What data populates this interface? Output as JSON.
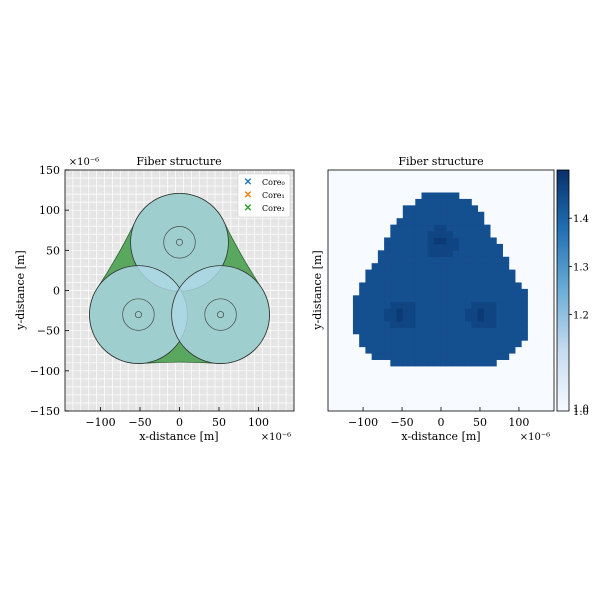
{
  "chart_data": [
    {
      "type": "scatter",
      "title": "Fiber structure",
      "xlabel": "x-distance [m]",
      "ylabel": "y-distance [m]",
      "x_offset_label": "×10⁻⁶",
      "y_offset_label": "×10⁻⁶",
      "xlim": [
        -145,
        145
      ],
      "ylim": [
        -150,
        150
      ],
      "xticks": [
        -100,
        -50,
        0,
        50,
        100
      ],
      "xtick_labels": [
        "−100",
        "−50",
        "0",
        "50",
        "100"
      ],
      "yticks": [
        -150,
        -100,
        -50,
        0,
        50,
        100,
        150
      ],
      "ytick_labels": [
        "−150",
        "−100",
        "−50",
        "0",
        "50",
        "100",
        "150"
      ],
      "grid": true,
      "background": "#e5e5e5",
      "legend_placement": "top-right",
      "legend": [
        {
          "label": "Core₀",
          "color": "#1f77b4",
          "marker": "x"
        },
        {
          "label": "Core₁",
          "color": "#ff7f0e",
          "marker": "x"
        },
        {
          "label": "Core₂",
          "color": "#2ca02c",
          "marker": "x"
        }
      ],
      "clad_color": "#5aa85f",
      "core_color": "#add8e6",
      "cores": [
        {
          "x": 0,
          "y": 60,
          "radius": 62,
          "inner_radius": 20,
          "center_radius": 4
        },
        {
          "x": -52,
          "y": -30,
          "radius": 62,
          "inner_radius": 20,
          "center_radius": 4
        },
        {
          "x": 52,
          "y": -30,
          "radius": 62,
          "inner_radius": 20,
          "center_radius": 4
        }
      ]
    },
    {
      "type": "heatmap",
      "title": "Fiber structure",
      "ylabel": "y-distance [m]",
      "xlabel": "x-distance [m]",
      "x_offset_label": "×10⁻⁶",
      "xlim": [
        -145,
        145
      ],
      "ylim": [
        -150,
        150
      ],
      "xticks": [
        -100,
        -50,
        0,
        50,
        100
      ],
      "xtick_labels": [
        "−100",
        "−50",
        "0",
        "50",
        "100"
      ],
      "colormap": "Blues",
      "background_value": 1.0,
      "fiber_value": 1.44,
      "core_value": 1.46,
      "center_value": 1.48,
      "cmap_range": [
        1.0,
        1.5
      ],
      "colorbar_ticks": [
        1.2,
        1.3,
        1.4
      ],
      "colorbar_tick_labels": [
        "1.2",
        "1.3",
        "1.4"
      ],
      "colorbar_extra_labels": [
        "1.0",
        "1.0"
      ],
      "grid_step": 8
    }
  ]
}
